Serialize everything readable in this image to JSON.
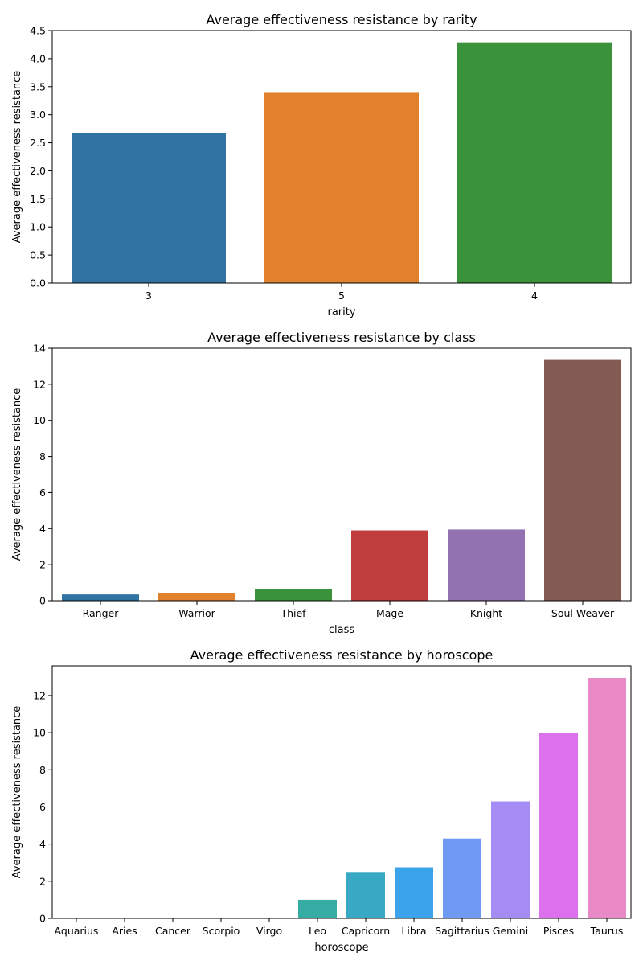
{
  "chart_data": [
    {
      "type": "bar",
      "title": "Average effectiveness resistance by rarity",
      "xlabel": "rarity",
      "ylabel": "Average effectiveness resistance",
      "categories": [
        "3",
        "5",
        "4"
      ],
      "values": [
        2.68,
        3.39,
        4.29
      ],
      "ylim": [
        0,
        4.5
      ],
      "yticks": [
        "0.0",
        "0.5",
        "1.0",
        "1.5",
        "2.0",
        "2.5",
        "3.0",
        "3.5",
        "4.0",
        "4.5"
      ],
      "colors": [
        "#3274a1",
        "#e1812c",
        "#3a923a"
      ],
      "grid": false,
      "legend": "none"
    },
    {
      "type": "bar",
      "title": "Average effectiveness resistance by class",
      "xlabel": "class",
      "ylabel": "Average effectiveness resistance",
      "categories": [
        "Ranger",
        "Warrior",
        "Thief",
        "Mage",
        "Knight",
        "Soul Weaver"
      ],
      "values": [
        0.35,
        0.4,
        0.65,
        3.9,
        3.95,
        13.35
      ],
      "ylim": [
        0,
        14
      ],
      "yticks": [
        "0",
        "2",
        "4",
        "6",
        "8",
        "10",
        "12",
        "14"
      ],
      "colors": [
        "#3274a1",
        "#e1812c",
        "#3a923a",
        "#c03d3e",
        "#9372b2",
        "#845b53"
      ],
      "grid": false,
      "legend": "none"
    },
    {
      "type": "bar",
      "title": "Average effectiveness resistance by horoscope",
      "xlabel": "horoscope",
      "ylabel": "Average effectiveness resistance",
      "categories": [
        "Aquarius",
        "Aries",
        "Cancer",
        "Scorpio",
        "Virgo",
        "Leo",
        "Capricorn",
        "Libra",
        "Sagittarius",
        "Gemini",
        "Pisces",
        "Taurus"
      ],
      "values": [
        0,
        0,
        0,
        0,
        0,
        1.0,
        2.5,
        2.75,
        4.3,
        6.3,
        10.0,
        12.95
      ],
      "ylim": [
        0,
        13.6
      ],
      "yticks": [
        "0",
        "2",
        "4",
        "6",
        "8",
        "10",
        "12"
      ],
      "colors": [
        "#f77189",
        "#dc8932",
        "#ae9d31",
        "#77ab31",
        "#33b07a",
        "#36ada4",
        "#38a9c5",
        "#3ba3ec",
        "#6e9af4",
        "#a48cf4",
        "#dc70ed",
        "#e989c5"
      ],
      "grid": false,
      "legend": "none"
    }
  ]
}
